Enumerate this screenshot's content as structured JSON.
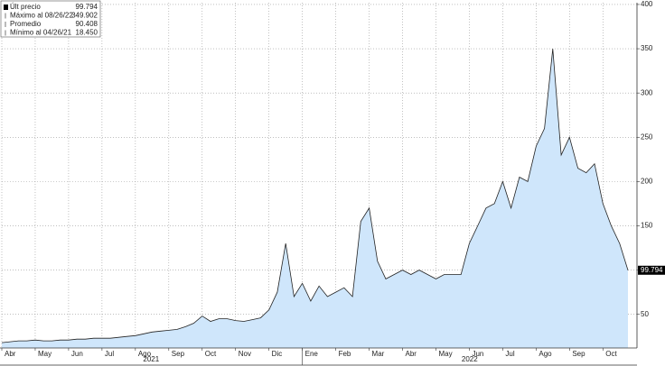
{
  "chart_data": {
    "type": "area",
    "legend": [
      {
        "label": "Últ precio",
        "value": "99.794"
      },
      {
        "label": "Máximo al 08/26/22",
        "value": "349.902"
      },
      {
        "label": "Promedio",
        "value": "90.408"
      },
      {
        "label": "Mínimo al 04/26/21",
        "value": "18.450"
      }
    ],
    "categories": [
      "Abr",
      null,
      null,
      null,
      "May",
      null,
      null,
      null,
      "Jun",
      null,
      null,
      null,
      "Jul",
      null,
      null,
      null,
      "Ago",
      null,
      null,
      null,
      "Sep",
      null,
      null,
      null,
      "Oct",
      null,
      null,
      null,
      "Nov",
      null,
      null,
      null,
      "Dic",
      null,
      null,
      null,
      "Ene",
      null,
      null,
      null,
      "Feb",
      null,
      null,
      null,
      "Mar",
      null,
      null,
      null,
      "Abr",
      null,
      null,
      null,
      "May",
      null,
      null,
      null,
      "Jun",
      null,
      null,
      null,
      "Jul",
      null,
      null,
      null,
      "Ago",
      null,
      null,
      null,
      "Sep",
      null,
      null,
      null,
      "Oct",
      null,
      null,
      null
    ],
    "values": [
      18,
      19,
      20,
      20,
      21,
      20,
      20,
      21,
      21,
      22,
      22,
      23,
      23,
      23,
      24,
      25,
      26,
      28,
      30,
      31,
      32,
      33,
      36,
      40,
      48,
      42,
      45,
      45,
      43,
      42,
      44,
      46,
      55,
      75,
      130,
      70,
      85,
      65,
      82,
      70,
      75,
      80,
      70,
      155,
      170,
      110,
      90,
      95,
      100,
      95,
      100,
      95,
      90,
      95,
      95,
      95,
      130,
      150,
      170,
      175,
      200,
      170,
      205,
      200,
      240,
      260,
      350,
      230,
      250,
      215,
      210,
      220,
      175,
      150,
      130,
      99.794
    ],
    "color": "#cfe6fb",
    "line_color": "#222222",
    "year_labels": [
      "2021",
      "2022"
    ],
    "ylim": [
      12,
      402
    ],
    "yticks": [
      50,
      100,
      150,
      200,
      250,
      300,
      350,
      400
    ],
    "grid": true
  }
}
